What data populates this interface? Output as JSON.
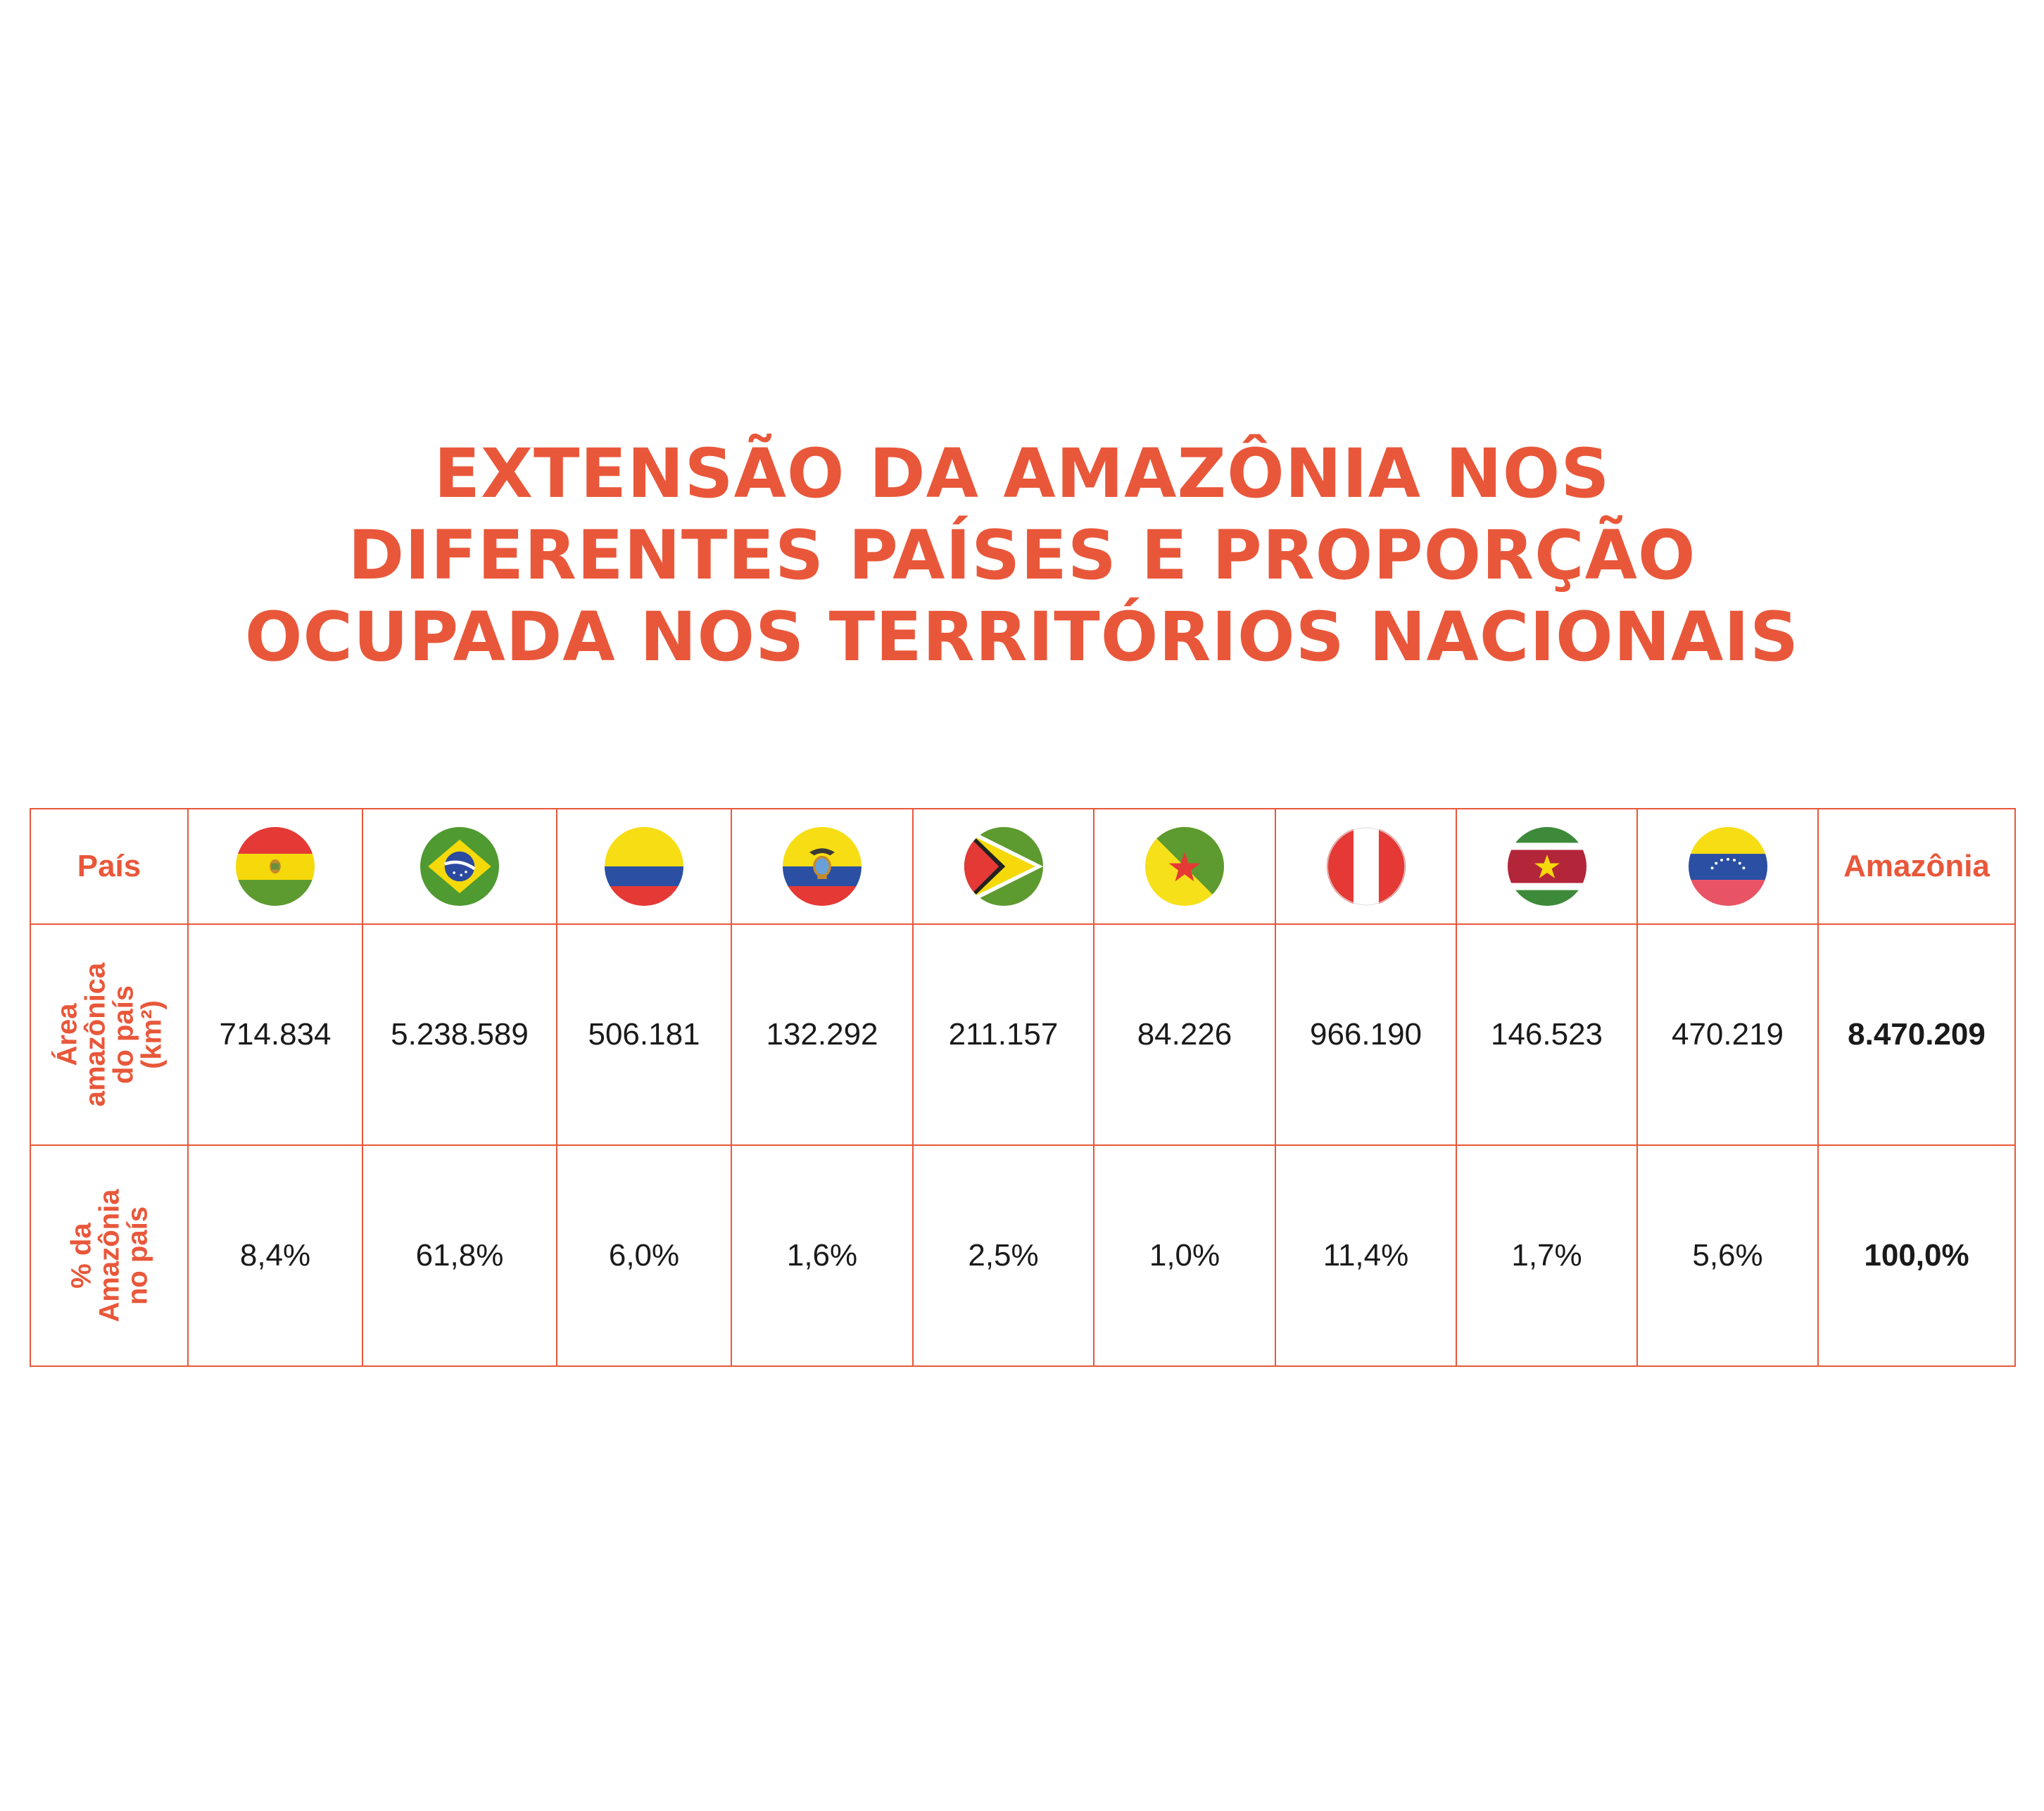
{
  "colors": {
    "accent": "#e9573a",
    "text": "#1a1a1a"
  },
  "title_lines": [
    "EXTENSÃO DA AMAZÔNIA NOS",
    "DIFERENTES PAÍSES E PROPORÇÃO",
    "OCUPADA NOS TERRITÓRIOS NACIONAIS"
  ],
  "table": {
    "header_label": "País",
    "total_header": "Amazônia",
    "row_labels": {
      "area": [
        "Área",
        "amazônica",
        "do país",
        "(km²)"
      ],
      "pct": [
        "% da",
        "Amazônia",
        "no país"
      ]
    },
    "flags": [
      {
        "icon": "bolivia-flag-icon"
      },
      {
        "icon": "brazil-flag-icon"
      },
      {
        "icon": "colombia-flag-icon"
      },
      {
        "icon": "ecuador-flag-icon"
      },
      {
        "icon": "guyana-flag-icon"
      },
      {
        "icon": "french-guiana-flag-icon"
      },
      {
        "icon": "peru-flag-icon"
      },
      {
        "icon": "suriname-flag-icon"
      },
      {
        "icon": "venezuela-flag-icon"
      }
    ],
    "area_values": [
      "714.834",
      "5.238.589",
      "506.181",
      "132.292",
      "211.157",
      "84.226",
      "966.190",
      "146.523",
      "470.219"
    ],
    "area_total": "8.470.209",
    "pct_values": [
      "8,4%",
      "61,8%",
      "6,0%",
      "1,6%",
      "2,5%",
      "1,0%",
      "11,4%",
      "1,7%",
      "5,6%"
    ],
    "pct_total": "100,0%"
  },
  "chart_data": {
    "type": "table",
    "title": "EXTENSÃO DA AMAZÔNIA NOS DIFERENTES PAÍSES E PROPORÇÃO OCUPADA NOS TERRITÓRIOS NACIONAIS",
    "columns": [
      "País",
      "Área amazônica do país (km²)",
      "% da Amazônia no país"
    ],
    "rows": [
      {
        "flag": "bolivia-flag-icon",
        "area_km2": 714834,
        "pct": 8.4
      },
      {
        "flag": "brazil-flag-icon",
        "area_km2": 5238589,
        "pct": 61.8
      },
      {
        "flag": "colombia-flag-icon",
        "area_km2": 506181,
        "pct": 6.0
      },
      {
        "flag": "ecuador-flag-icon",
        "area_km2": 132292,
        "pct": 1.6
      },
      {
        "flag": "guyana-flag-icon",
        "area_km2": 211157,
        "pct": 2.5
      },
      {
        "flag": "french-guiana-flag-icon",
        "area_km2": 84226,
        "pct": 1.0
      },
      {
        "flag": "peru-flag-icon",
        "area_km2": 966190,
        "pct": 11.4
      },
      {
        "flag": "suriname-flag-icon",
        "area_km2": 146523,
        "pct": 1.7
      },
      {
        "flag": "venezuela-flag-icon",
        "area_km2": 470219,
        "pct": 5.6
      }
    ],
    "total": {
      "label": "Amazônia",
      "area_km2": 8470209,
      "pct": 100.0
    }
  }
}
